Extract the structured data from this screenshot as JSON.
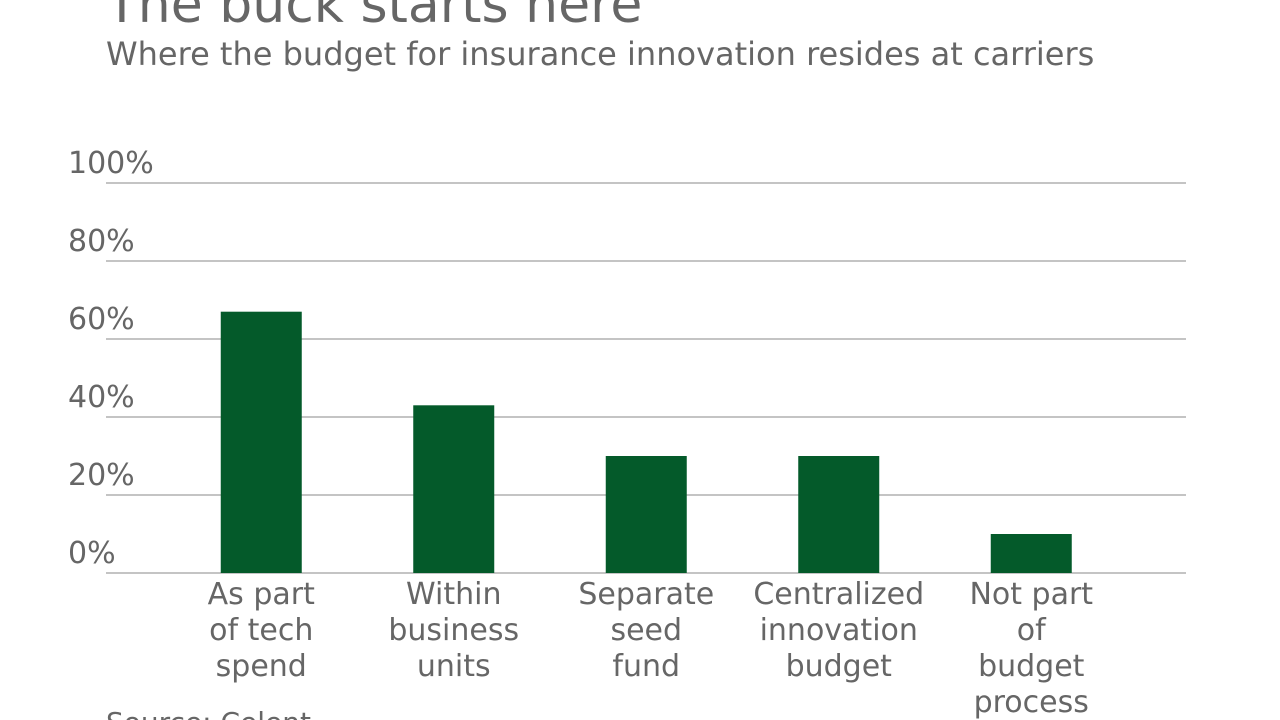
{
  "chart_data": {
    "type": "bar",
    "title": "The buck starts here",
    "subtitle": "Where the budget for insurance innovation resides at carriers",
    "source": "Source: Celent",
    "categories": [
      "As part\nof tech\nspend",
      "Within\nbusiness\nunits",
      "Separate\nseed\nfund",
      "Centralized\ninnovation\nbudget",
      "Not part\nof\nbudget\nprocess"
    ],
    "values": [
      67,
      43,
      30,
      30,
      10
    ],
    "color": "#045a2a",
    "ylim": [
      0,
      100
    ],
    "yticks": [
      {
        "value": 0,
        "label": "0%"
      },
      {
        "value": 20,
        "label": "20%"
      },
      {
        "value": 40,
        "label": "40%"
      },
      {
        "value": 60,
        "label": "60%"
      },
      {
        "value": 80,
        "label": "80%"
      },
      {
        "value": 100,
        "label": "100%"
      }
    ],
    "grid": true
  }
}
